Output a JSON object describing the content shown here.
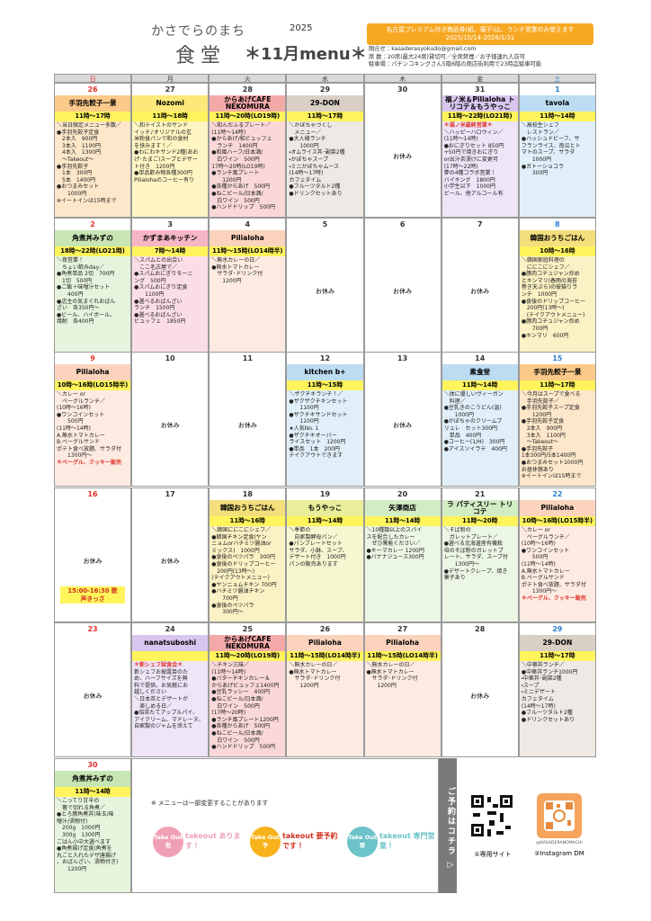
{
  "header": {
    "subtitle": "かさでらのまち",
    "title": "食堂",
    "year": "2025",
    "menu_title": "＊11月menu＊",
    "notice": "名古屋プレミアム付き商品券(紙、電子)は、ランチ営業のみ使えます　2025/10/14-2026/1/31",
    "info": [
      "問合せ：kasaderasyokudo@gmail.com",
      "席 数：20席(最大24席)貸切可／全席禁煙／お子様連れ入店可",
      "駐車場：パチンコキングさん5階6階の商店街利用で23時迄駐車可能"
    ]
  },
  "calendar": {
    "weekdays": [
      "日",
      "月",
      "火",
      "水",
      "木",
      "金",
      "土"
    ],
    "weeks": [
      [
        {
          "date": "26",
          "shop": "手羽先餃子一景",
          "hours": "11時～17時",
          "color": "#fbc98a",
          "body": [
            "＼当日限定メニュー多数／",
            "●手羽先餃子定食",
            "　2本入　900円",
            "　3本入　1100円",
            "　4本入　1300円",
            "　～Takeout～",
            "●手羽先餃子",
            "　1本　300円",
            "　5本　1400円",
            "●おつまみセット",
            "　　1000円",
            "※イートインは15時まで"
          ]
        },
        {
          "date": "27",
          "shop": "Nozomi",
          "hours": "11時～18時",
          "color": "#fde97a",
          "body": [
            "＼和テイストのサンド",
            "イッチ♪オリジナルの玄",
            "米粉食パンで和の食材",
            "を挟みます！／",
            "●わにわキサンド2種(あお",
            "げ･たまご)スープとデザー",
            "ト付き　1200円",
            "●単品飲み物各種300円",
            "Pilialohaのコーヒー有り"
          ]
        },
        {
          "date": "28",
          "shop": "からあげCAFE NEKOMURA",
          "hours": "11時～20時(LO19時)",
          "color": "#f4a9a9",
          "body": [
            "＼和んだふるプレート／",
            "(11時～14時)",
            "●からあげ/和ビュッフェ",
            "　ランチ　1400円",
            "●和風ハーフ/日本酒/",
            "　白ワイン　500円",
            "17時～20時(LO19時)",
            "●ランチ風プレート",
            "　　1200円",
            "●各種からあげ　500円",
            "●ねこビール/日本酒/",
            "　白ワイン　500円",
            "●ハンドドリップ　500円"
          ]
        },
        {
          "date": "29",
          "shop": "29-DON",
          "hours": "11時～17時",
          "color": "#d9cfc4",
          "body": [
            "＼かぼちゃづくし",
            "　メニュー／",
            "●大人様ランチ",
            "　　1000円",
            "・オムライス丼･副菜2種",
            "・かぼちゃスープ",
            "・ミニかぼちゃムース",
            "(14時～17時)",
            "カフェタイム",
            "●フルーツタルト2種",
            "●ドリンクセットあり"
          ]
        },
        {
          "date": "30",
          "closed": "お休み"
        },
        {
          "date": "31",
          "shop": "福ノ米＆Pilialoha トリコテ＆もうやっこ",
          "hours": "11時～22時(LO21時)",
          "color": "#d9c6ee",
          "body": [
            "＊福ノ米最終営業＊",
            "＼ハッピーハロウィン／",
            "(11時～14時)",
            "●おにぎりセット 850円",
            "+50円で焼きおにぎり",
            "or出汁茶漬けに変更可",
            "(17時～22時)",
            "夢の4種コラボ営業！",
            "バイキング　1800円",
            "小学生以下　1000円",
            "ビール、他アルコール有"
          ]
        },
        {
          "date": "1",
          "shop": "tavola",
          "hours": "11時～14時",
          "color": "#bcdcf2",
          "body": [
            "＼高校生シェフ",
            "　レストラン／",
            "●ハッシュドビーフ、サ",
            "フランライス、南瓜とト",
            "マトのスープ、サラダ",
            "　　1000円",
            "●ガトーショコラ",
            "　　300円"
          ]
        }
      ],
      [
        {
          "date": "2",
          "shop": "角煮丼みずの",
          "hours": "18時～22時(LO21時)",
          "color": "#c7e6b4",
          "body": [
            "＼夜営業！",
            "　ちょい飲みday／",
            "●角煮単品 2切　700円",
            "　1切　500円",
            "●ご飯＋味噌汁セット",
            "　　400円",
            "●店主の気まぐれおばん",
            "ざい　各350円～",
            "●ビール、ハイボール、",
            "焼酎　各400円"
          ]
        },
        {
          "date": "3",
          "shop": "かずまあキッチン",
          "hours": "7時～14時",
          "color": "#f7b6c6",
          "body": [
            "＼スパムとの出会い",
            "　ここ名古屋で／",
            "●スパムおにぎりモーニ",
            "ング　500円",
            "●スパムおにぎり定食",
            "　　1100円",
            "●選べるおばんざい",
            "ランチ　1500円",
            "●選べるおばんざい",
            "ビュッフェ　1850円"
          ]
        },
        {
          "date": "4",
          "shop": "Pilialoha",
          "hours": "11時～15時(LO14時半)",
          "color": "#fbd3bd",
          "body": [
            "＼無水カレーの日／",
            "●無水トマトカレー",
            "　サラダ･ドリンク付",
            "　　1200円"
          ]
        },
        {
          "date": "5",
          "closed": "お休み"
        },
        {
          "date": "6",
          "closed": "お休み"
        },
        {
          "date": "7",
          "closed": "お休み"
        },
        {
          "date": "8",
          "shop": "韓国おうちごはん",
          "hours": "10時～16時",
          "color": "#f3df7c",
          "body": [
            "＼韓国家庭料理の",
            "　ににこにシェフ／",
            "●豚肉コチュジャン炒め",
            "とキンマリ(春雨の海苔",
            "巻き天ぷら)の彼猫りラ",
            "ンチ　1000円",
            "●食後のドリップコーヒー",
            "　200円(13時～)",
            "　(テイクアウトメニュー)",
            "●豚肉コチュジャン炒め",
            "　　700円",
            "●キンマリ　600円"
          ]
        }
      ],
      [
        {
          "date": "9",
          "shop": "Pilialoha",
          "hours": "10時～16時(LO15時半)",
          "color": "#fbd3bd",
          "body": [
            "＼カレー or",
            "　ベーグルランチ／",
            "(10時～16時)",
            "●ワンコインセット",
            "　　500円",
            "(11時～14時)",
            "A.無水トマトカレー",
            "B.ベーグルサンド",
            "ポテト食べ放題、サラダ付",
            "　　1300円～",
            "＊ベーグル、クッキー販売"
          ]
        },
        {
          "date": "10",
          "closed": "お休み"
        },
        {
          "date": "11",
          "closed": "お休み"
        },
        {
          "date": "12",
          "shop": "kitchen b+",
          "hours": "11時～15時",
          "color": "#bcdcf2",
          "body": [
            "＼ザクチキランチ！／",
            "●ザクザクチキンセット",
            "　　1100円",
            "●ザクチキサンドセット",
            "　　1100円",
            "★人気No. 1",
            "●ザクチキオーバー",
            "ライスセット　1200円",
            "●単品　1本　200円",
            "テイクアウトできます"
          ]
        },
        {
          "date": "13",
          "closed": "お休み"
        },
        {
          "date": "14",
          "shop": "素食堂",
          "hours": "11時～14時",
          "color": "#bcdcf2",
          "body": [
            "＼体に優しいヴィーガン",
            "　料理／",
            "●豆乳きのこうどん(温)",
            "　　1000円",
            "●かぼちゃのクリームブ",
            "リュレ　セット300円",
            "　単品　400円",
            "●コーヒー(1/H)　300円",
            "●アイスソイラテ　400円"
          ]
        },
        {
          "date": "15",
          "shop": "手羽先餃子一景",
          "hours": "11時～17時",
          "color": "#fbc98a",
          "body": [
            "＼今月はスープで食べる",
            "　手羽先餃子／",
            "●手羽先餃子スープ定食",
            "　　1200円",
            "●手羽先餃子定食",
            "　2本入　900円",
            "　3本入　1100円",
            "　～Takeout～",
            "●手羽先餃子",
            "1本300円/5本1400円",
            "●おつまみセット1000円",
            "お昼休憩あり",
            "※イートインは15時まで"
          ]
        }
      ],
      [
        {
          "date": "16",
          "closed": "お休み",
          "tag": "15:00-16:30 歌声きっさ"
        },
        {
          "date": "17",
          "closed": "お休み"
        },
        {
          "date": "18",
          "shop": "韓国おうちごはん",
          "hours": "11時～16時",
          "color": "#f3df7c",
          "body": [
            "＼韓国ににこにシェフ／",
            "●韓国チキン定食(ヤン",
            "ニョムorハチミツ醤油or",
            "ミックス)　1000円",
            "●食後のペツパラ　300円",
            "●食後のドリップコーヒー",
            "　200円(13時～)",
            "(テイクアウトメニュー)",
            "●ヤンニョムチキン 700円",
            "●ハチミツ醤油チキン",
            "　　700円",
            "●食後のペツパラ",
            "　　300円～"
          ]
        },
        {
          "date": "19",
          "shop": "もうやっこ",
          "hours": "11時～14時",
          "color": "#e8ee9a",
          "body": [
            "＼季節の",
            "　自家製酵母パン／",
            "●パンプレートセット",
            "サラダ、小鉢、スープ、",
            "デザート付き　1000円",
            "パンの販売あります"
          ]
        },
        {
          "date": "20",
          "shop": "矢澤商店",
          "hours": "11時～14時",
          "color": "#d2ecc4",
          "body": [
            "＼10種類以上のスパイ",
            "スを配合したカレー",
            "　ぜひ篤能ください／",
            "●キーマカレー 1200円",
            "●バナナジュース300円"
          ]
        },
        {
          "date": "21",
          "shop": "ラ パティスリー トリコテ",
          "hours": "11時～20時",
          "color": "#d2ecc4",
          "body": [
            "＼そば粉の",
            "　ガレットプレート／",
            "●選べる北海道産有機栽",
            "培のそば粉のガレットプ",
            "レート、サラダ、スープ付",
            "　　1300円～",
            "●デザートクレープ、焼き",
            "菓子あり"
          ]
        },
        {
          "date": "22",
          "shop": "Pilialoha",
          "hours": "10時～16時(LO15時半)",
          "color": "#fbd3bd",
          "body": [
            "＼カレー or",
            "　ベーグルランチ／",
            "(10時～16時)",
            "●ワンコインセット",
            "　　500円",
            "(11時～14時)",
            "A.無水トマトカレー",
            "B.ベーグルサンド",
            "ポテト食べ放題、サラダ付",
            "　　1300円～",
            "＊ベーグル、クッキー販売"
          ]
        }
      ],
      [
        {
          "date": "23",
          "closed": "お休み"
        },
        {
          "date": "24",
          "shop": "nanatsuboshi",
          "hours": "",
          "color": "#d9c6ee",
          "body": [
            "＊新シェフ試食会＊",
            "新シェフお披露目のた",
            "め、ハーフサイズを無",
            "料で提供。お気軽にお",
            "越しください",
            "＼日本茶とデザートが",
            "　楽しめる日／",
            "●焙茶たてアップルパイ、",
            "アイクリーム、マドレーヌ、",
            "自家製のジャムを添えて"
          ]
        },
        {
          "date": "25",
          "shop": "からあげCAFE NEKOMURA",
          "hours": "11時～20時(LO19時)",
          "color": "#f4a9a9",
          "body": [
            "＼チキン三昧／",
            "(11時～14時)",
            "●バターチキンカレー＆",
            "からあげビュッフェ1400円",
            "●豆乳ラッシー　400円",
            "●ねこビール/日本酒/",
            "　白ワイン　500円",
            "(17時～20時)",
            "●ランチ風プレート1200円",
            "●各種からあげ　500円",
            "●ねこビール/日本酒/",
            "　白ワイン　500円",
            "●ハンドドリップ　500円"
          ]
        },
        {
          "date": "26",
          "shop": "Pilialoha",
          "hours": "11時～15時(LO14時半)",
          "color": "#fbd3bd",
          "body": [
            "＼無水カレーの日／",
            "●無水トマトカレー",
            "　サラダ･ドリンク付",
            "　　1200円"
          ]
        },
        {
          "date": "27",
          "shop": "Pilialoha",
          "hours": "11時～15時(LO14時半)",
          "color": "#fbd3bd",
          "body": [
            "＼無水カレーの日／",
            "●無水トマトカレー",
            "　サラダ･ドリンク付",
            "　　1200円"
          ]
        },
        {
          "date": "28",
          "closed": "お休み"
        },
        {
          "date": "29",
          "shop": "29-DON",
          "hours": "11時～17時",
          "color": "#d9cfc4",
          "body": [
            "＼中華丼ランチ／",
            "●中華丼ランチ1000円",
            "・中華丼･副菜2種",
            "・スープ",
            "・ミニデザート",
            "カフェタイム",
            "(14時～17時)",
            "●フルーツタルト2種",
            "●ドリンクセットあり"
          ]
        }
      ],
      [
        {
          "date": "30",
          "shop": "角煮丼みずの",
          "hours": "11時～14時",
          "color": "#c7e6b4",
          "body": [
            "＼こってり甘辛の",
            "　箸で切れる角煮／",
            "●とろ豚角煮丼(味玉/味",
            "噌汁/漬物付)",
            "　200g　1000円",
            "　300g　1300円",
            "ごはん小中大選べます",
            "●角煮揚げ定食(角煮を",
            "丸ごと入れたデザ唐揚げ",
            "、おばんざい、漬物付き)",
            "　　1200円"
          ]
        }
      ]
    ]
  },
  "footer": {
    "note": "※ メニューは一部変更することがあります",
    "badges": [
      {
        "icon": "Take Out 有",
        "label": "takeout あります！"
      },
      {
        "icon": "Take Out 予",
        "label": "takeout 要予約です！"
      },
      {
        "icon": "Take Out 専",
        "label": "takeout 専門営業！"
      }
    ],
    "reserve": "ご予約はコチラ ▷",
    "qr_site": "①専用サイト",
    "qr_handle": "@KASADERANOMACHI",
    "qr_instagram": "②Instagram DM"
  }
}
